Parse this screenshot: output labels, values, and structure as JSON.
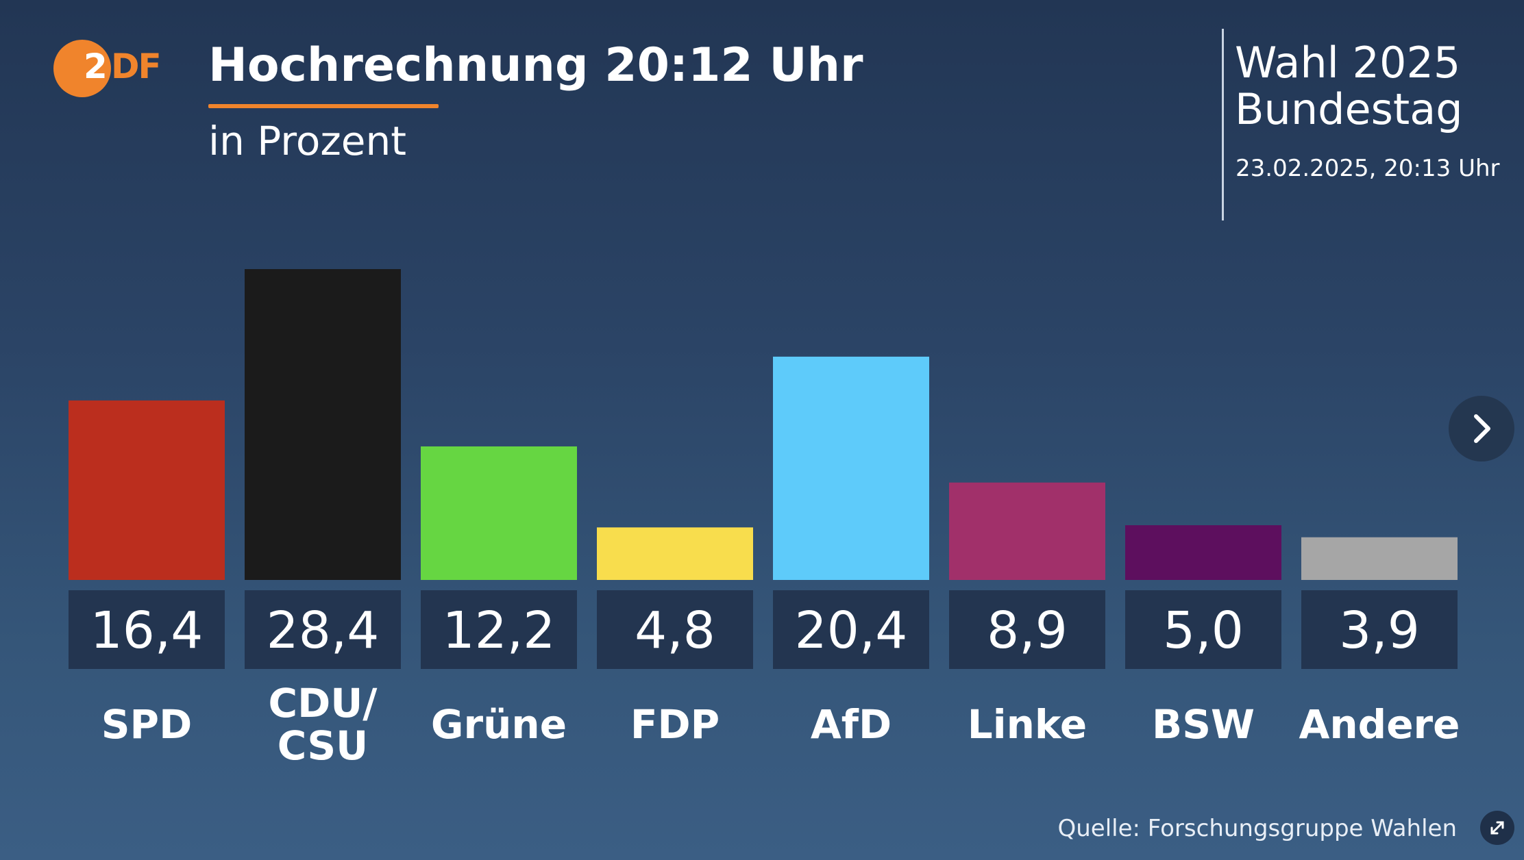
{
  "header": {
    "logo_text": "ZDF",
    "title": "Hochrechnung 20:12 Uhr",
    "subtitle": "in Prozent",
    "election_line1": "Wahl 2025",
    "election_line2": "Bundestag",
    "datetime": "23.02.2025, 20:13 Uhr"
  },
  "footer": {
    "source": "Quelle: Forschungsgruppe Wahlen"
  },
  "controls": {
    "next_icon": "chevron-right-icon",
    "expand_icon": "expand-icon"
  },
  "colors": {
    "accent": "#f0842c",
    "label_box": "#233550"
  },
  "chart_data": {
    "type": "bar",
    "title": "Hochrechnung 20:12 Uhr",
    "subtitle": "in Prozent",
    "categories": [
      "SPD",
      "CDU/\nCSU",
      "Grüne",
      "FDP",
      "AfD",
      "Linke",
      "BSW",
      "Andere"
    ],
    "values": [
      16.4,
      28.4,
      12.2,
      4.8,
      20.4,
      8.9,
      5.0,
      3.9
    ],
    "value_labels": [
      "16,4",
      "28,4",
      "12,2",
      "4,8",
      "20,4",
      "8,9",
      "5,0",
      "3,9"
    ],
    "colors": [
      "#bb2e1e",
      "#1b1b1b",
      "#66d642",
      "#f8dd4d",
      "#5ecbfa",
      "#a1306a",
      "#5d0f5e",
      "#a6a6a6"
    ],
    "ylim": [
      0,
      28.4
    ],
    "xlabel": "",
    "ylabel": "",
    "grid": false,
    "legend": "none"
  }
}
